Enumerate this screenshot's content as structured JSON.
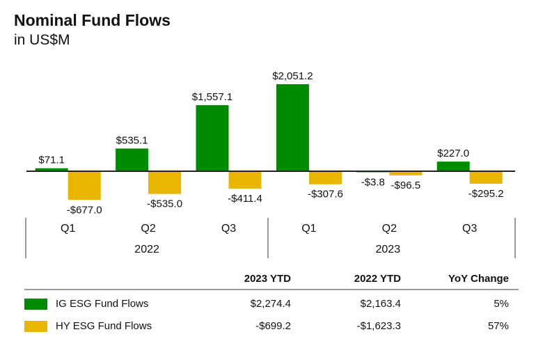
{
  "chart_data": {
    "type": "bar",
    "title": "Nominal Fund Flows",
    "subtitle": "in US$M",
    "categories": [
      "Q1",
      "Q2",
      "Q3",
      "Q1",
      "Q2",
      "Q3"
    ],
    "groups": [
      {
        "label": "2022",
        "span": 3
      },
      {
        "label": "2023",
        "span": 3
      }
    ],
    "series": [
      {
        "name": "IG ESG Fund Flows",
        "color": "#008a00",
        "values": [
          71.1,
          535.1,
          1557.1,
          2051.2,
          -3.8,
          227.0
        ],
        "labels": [
          "$71.1",
          "$535.1",
          "$1,557.1",
          "$2,051.2",
          "-$3.8",
          "$227.0"
        ]
      },
      {
        "name": "HY ESG Fund Flows",
        "color": "#e8b500",
        "values": [
          -677.0,
          -535.0,
          -411.4,
          -307.6,
          -96.5,
          -295.2
        ],
        "labels": [
          "-$677.0",
          "-$535.0",
          "-$411.4",
          "-$307.6",
          "-$96.5",
          "-$295.2"
        ]
      }
    ],
    "xlabel": "",
    "ylabel": "",
    "grid": false
  },
  "table": {
    "headers": [
      "",
      "2023 YTD",
      "2022 YTD",
      "YoY Change"
    ],
    "rows": [
      {
        "name": "IG ESG Fund Flows",
        "color": "#008a00",
        "cells": [
          "$2,274.4",
          "$2,163.4",
          "5%"
        ]
      },
      {
        "name": "HY ESG Fund Flows",
        "color": "#e8b500",
        "cells": [
          "-$699.2",
          "-$1,623.3",
          "57%"
        ]
      }
    ]
  }
}
